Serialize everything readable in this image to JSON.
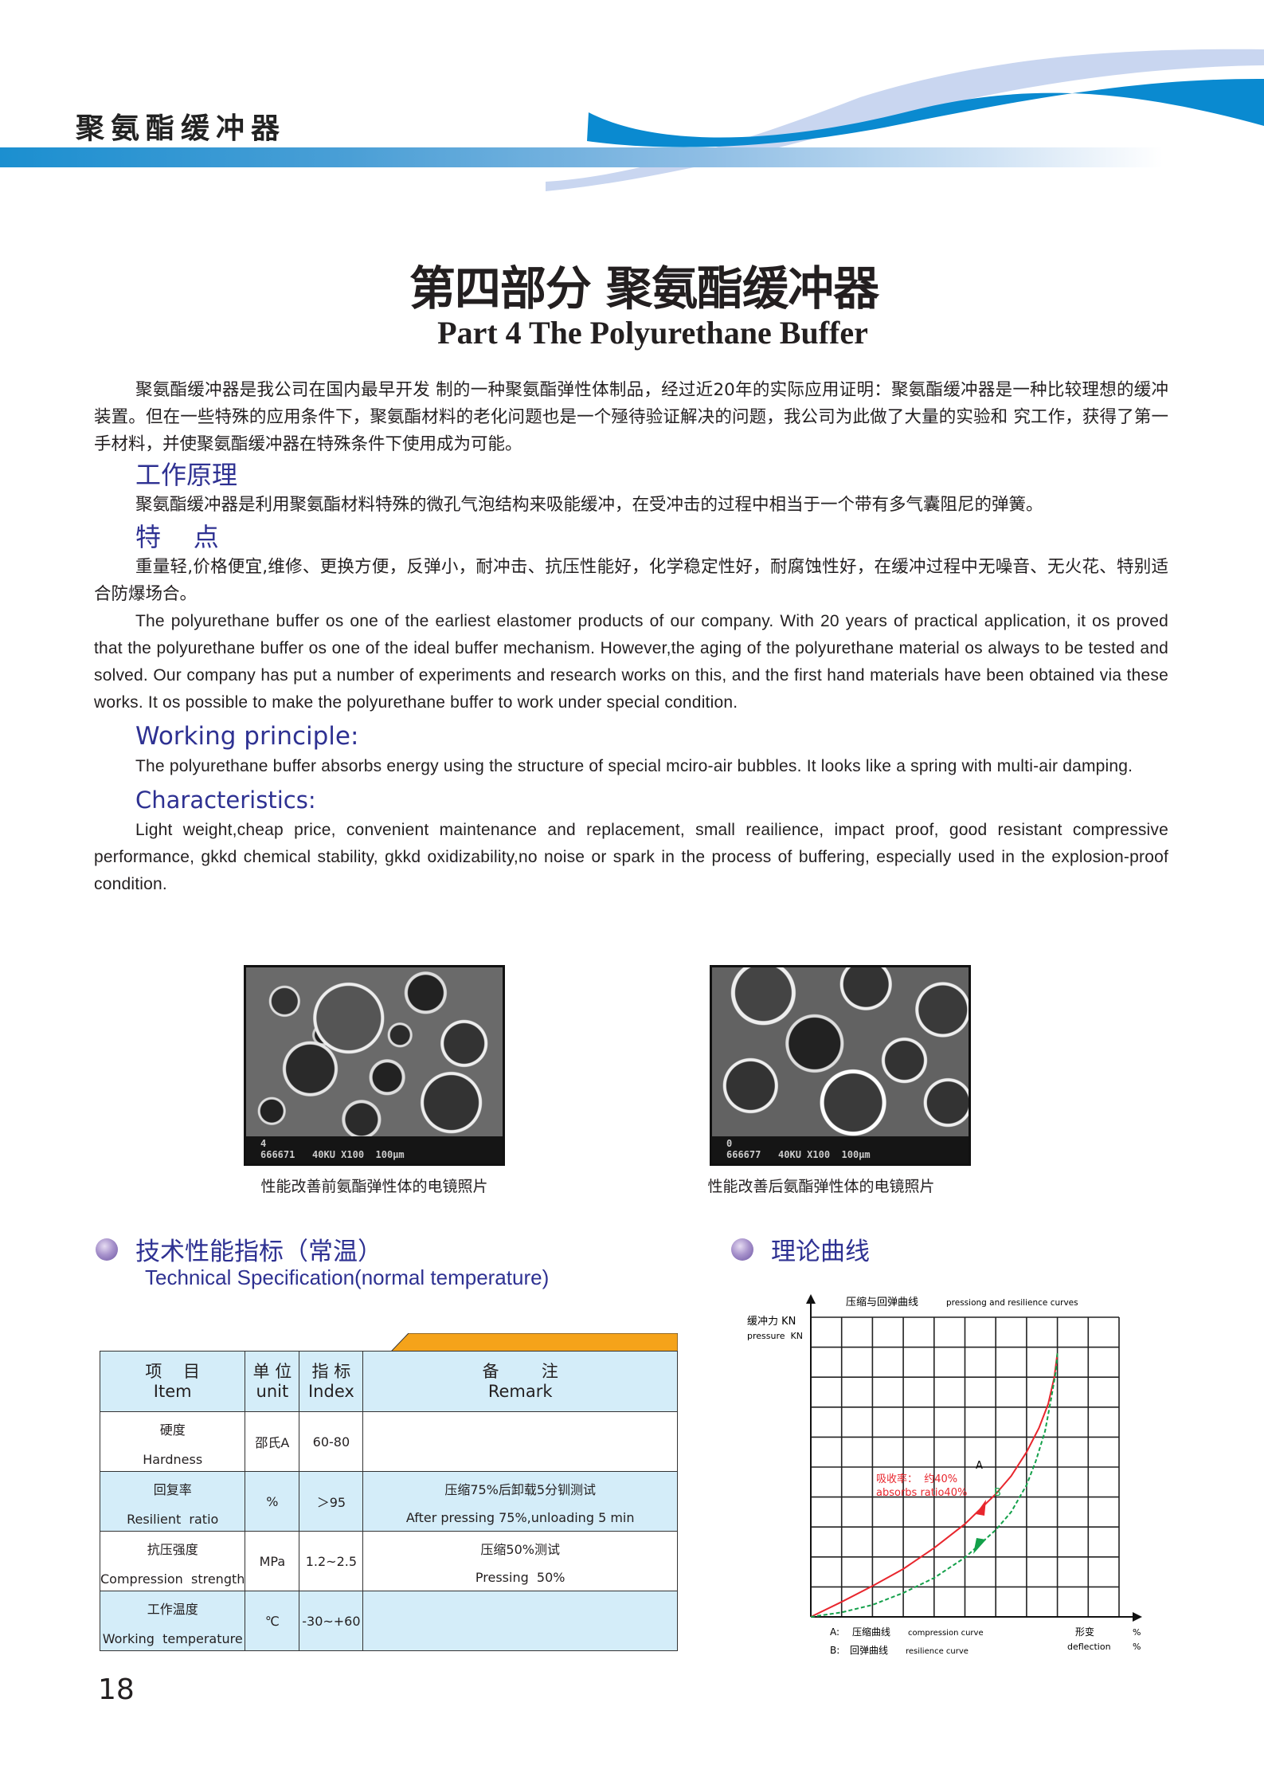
{
  "header": {
    "section_title": "聚氨酯缓冲器"
  },
  "title": {
    "cn": "第四部分  聚氨酯缓冲器",
    "en": "Part 4  The Polyurethane Buffer"
  },
  "intro_cn": "聚氨酯缓冲器是我公司在国内最早开发   制的一种聚氨酯弹性体制品，经过近20年的实际应用证明：聚氨酯缓冲器是一种比较理想的缓冲装置。但在一些特殊的应用条件下，聚氨酯材料的老化问题也是一个殛待验证解决的问题，我公司为此做了大量的实验和   究工作，获得了第一手材料，并使聚氨酯缓冲器在特殊条件下使用成为可能。",
  "working_principle_cn": {
    "heading": "工作原理",
    "text": "聚氨酯缓冲器是利用聚氨酯材料特殊的微孔气泡结构来吸能缓冲，在受冲击的过程中相当于一个带有多气囊阻尼的弹簧。"
  },
  "features_cn": {
    "heading": "特    点",
    "text": "重量轻,价格便宜,维修、更换方便，反弹小，耐冲击、抗压性能好，化学稳定性好，耐腐蚀性好，在缓冲过程中无噪音、无火花、特别适合防爆场合。"
  },
  "intro_en": "The polyurethane buffer os one of the earliest elastomer products of our company. With 20 years of practical application, it os proved that the polyurethane buffer os one of the ideal buffer mechanism. However,the aging of the polyurethane material os always to be tested and solved. Our company has put a number of experiments and research works on this, and the first hand materials have been obtained via these works. It os possible to make the polyurethane buffer to work under special condition.",
  "working_principle_en": {
    "heading": "Working principle:",
    "text": "The polyurethane buffer absorbs energy using the structure of special mciro-air bubbles. It looks like a spring with multi-air damping."
  },
  "characteristics_en": {
    "heading": "Characteristics:",
    "text": "Light weight,cheap price, convenient maintenance and replacement, small reailience, impact proof, good resistant compressive performance, gkkd chemical stability, gkkd oxidizability,no noise or spark in the process of buffering, especially used in the explosion-proof condition."
  },
  "photos": [
    {
      "caption": "性能改善前氨酯弹性体的电镜照片",
      "id_mark": "4",
      "info": "666671   40KU X100  100μm"
    },
    {
      "caption": "性能改善后氨酯弹性体的电镜照片",
      "id_mark": "0",
      "info": "666677   40KU X100  100μm"
    }
  ],
  "spec": {
    "heading_cn": "技术性能指标（常温）",
    "heading_en": "Technical Specification(normal temperature)",
    "columns": [
      {
        "cn": "项    目",
        "en": "Item"
      },
      {
        "cn": "单 位",
        "en": "unit"
      },
      {
        "cn": "指 标",
        "en": "Index"
      },
      {
        "cn": "备        注",
        "en": "Remark"
      }
    ],
    "rows": [
      {
        "item_cn": "硬度",
        "item_en": "Hardness",
        "unit": "邵氏A",
        "index": "60-80",
        "remark_cn": "",
        "remark_en": ""
      },
      {
        "item_cn": "回复率",
        "item_en": "Resilient  ratio",
        "unit": "%",
        "index": "＞95",
        "remark_cn": "压缩75%后卸载5分钏测试",
        "remark_en": "After pressing 75%,unloading 5 min"
      },
      {
        "item_cn": "抗压强度",
        "item_en": "Compression  strength",
        "unit": "MPa",
        "index": "1.2~2.5",
        "remark_cn": "压缩50%测试",
        "remark_en": "Pressing  50%"
      },
      {
        "item_cn": "工作温度",
        "item_en": "Working  temperature",
        "unit": "℃",
        "index": "-30~+60",
        "remark_cn": "",
        "remark_en": ""
      }
    ]
  },
  "theory": {
    "heading_cn": "理论曲线",
    "chart_title_cn": "压缩与回弹曲线",
    "chart_title_en": "pressiong and resilience curves",
    "y_label_cn": "缓冲力 KN",
    "y_label_en": "pressure  KN",
    "x_label_cn": "形变",
    "x_label_en": "deflection",
    "x_unit": "%",
    "curve_a_label": "A",
    "curve_b_label": "B",
    "annotation_cn": "吸收率：  约40%",
    "annotation_en": "absorbs ratio40%",
    "legend_a": {
      "key": "A:",
      "cn": "压缩曲线",
      "en": "compression curve"
    },
    "legend_b": {
      "key": "B:",
      "cn": "回弹曲线",
      "en": "resilience curve"
    },
    "colors": {
      "compression": "#e8262d",
      "resilience": "#13a04a"
    }
  },
  "page_number": "18",
  "colors": {
    "heading_blue": "#2e3192",
    "band_blue": "#1b8fd0",
    "table_fill": "#d4edf9",
    "tab_orange": "#f5a31a"
  }
}
